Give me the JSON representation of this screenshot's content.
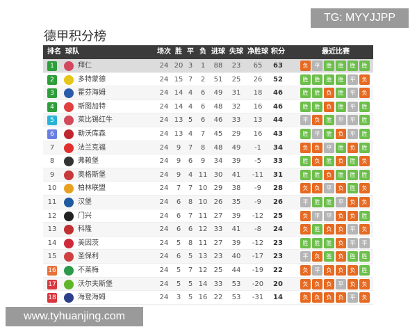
{
  "watermark_top": "TG: MYYJJPP",
  "watermark_bottom": "www.tyhuanjing.com",
  "title": "德甲积分榜",
  "headers": {
    "rank": "排名",
    "team": "球队",
    "played": "场次",
    "win": "胜",
    "draw": "平",
    "loss": "负",
    "gf": "进球",
    "ga": "失球",
    "gd": "净胜球",
    "pts": "积分",
    "recent": "最近比赛"
  },
  "colors": {
    "header_bg": "#3b3b3b",
    "win": "#6cbf4a",
    "draw": "#b5b5b5",
    "loss": "#e66a22",
    "cl": "#2e9e3a",
    "el": "#2bb3d6",
    "conf": "#6a7fe0",
    "playoff": "#e8703a",
    "releg": "#d9363e"
  },
  "rows": [
    {
      "rank": "1",
      "team": "拜仁",
      "played": "24",
      "w": "20",
      "d": "3",
      "l": "1",
      "gf": "88",
      "ga": "23",
      "gd": "65",
      "pts": "63",
      "recent": [
        "负",
        "平",
        "胜",
        "胜",
        "胜",
        "胜"
      ],
      "zone": "cl",
      "logo": "#d3485f"
    },
    {
      "rank": "2",
      "team": "多特蒙德",
      "played": "24",
      "w": "15",
      "d": "7",
      "l": "2",
      "gf": "51",
      "ga": "25",
      "gd": "26",
      "pts": "52",
      "recent": [
        "胜",
        "胜",
        "胜",
        "胜",
        "平",
        "负"
      ],
      "zone": "cl",
      "logo": "#e6c619"
    },
    {
      "rank": "3",
      "team": "霍芬海姆",
      "played": "24",
      "w": "14",
      "d": "4",
      "l": "6",
      "gf": "49",
      "ga": "31",
      "gd": "18",
      "pts": "46",
      "recent": [
        "胜",
        "胜",
        "负",
        "胜",
        "平",
        "负"
      ],
      "zone": "cl",
      "logo": "#2a5caa"
    },
    {
      "rank": "4",
      "team": "斯图加特",
      "played": "24",
      "w": "14",
      "d": "4",
      "l": "6",
      "gf": "48",
      "ga": "32",
      "gd": "16",
      "pts": "46",
      "recent": [
        "胜",
        "胜",
        "负",
        "胜",
        "平",
        "胜"
      ],
      "zone": "cl",
      "logo": "#e04040"
    },
    {
      "rank": "5",
      "team": "莱比锡红牛",
      "played": "24",
      "w": "13",
      "d": "5",
      "l": "6",
      "gf": "46",
      "ga": "33",
      "gd": "13",
      "pts": "44",
      "recent": [
        "平",
        "负",
        "胜",
        "平",
        "平",
        "胜"
      ],
      "zone": "el",
      "logo": "#d24a5a"
    },
    {
      "rank": "6",
      "team": "勒沃库森",
      "played": "24",
      "w": "13",
      "d": "4",
      "l": "7",
      "gf": "45",
      "ga": "29",
      "gd": "16",
      "pts": "43",
      "recent": [
        "胜",
        "平",
        "胜",
        "负",
        "平",
        "胜"
      ],
      "zone": "conf",
      "logo": "#c0282d"
    },
    {
      "rank": "7",
      "team": "法兰克福",
      "played": "24",
      "w": "9",
      "d": "7",
      "l": "8",
      "gf": "48",
      "ga": "49",
      "gd": "-1",
      "pts": "34",
      "recent": [
        "负",
        "负",
        "平",
        "胜",
        "负",
        "胜"
      ],
      "zone": "",
      "logo": "#e03030"
    },
    {
      "rank": "8",
      "team": "弗赖堡",
      "played": "24",
      "w": "9",
      "d": "6",
      "l": "9",
      "gf": "34",
      "ga": "39",
      "gd": "-5",
      "pts": "33",
      "recent": [
        "胜",
        "负",
        "胜",
        "负",
        "胜",
        "负"
      ],
      "zone": "",
      "logo": "#333333"
    },
    {
      "rank": "9",
      "team": "奥格斯堡",
      "played": "24",
      "w": "9",
      "d": "4",
      "l": "11",
      "gf": "30",
      "ga": "41",
      "gd": "-11",
      "pts": "31",
      "recent": [
        "胜",
        "胜",
        "负",
        "胜",
        "胜",
        "胜"
      ],
      "zone": "",
      "logo": "#c83a3a"
    },
    {
      "rank": "10",
      "team": "柏林联盟",
      "played": "24",
      "w": "7",
      "d": "7",
      "l": "10",
      "gf": "29",
      "ga": "38",
      "gd": "-9",
      "pts": "28",
      "recent": [
        "负",
        "负",
        "平",
        "负",
        "胜",
        "负"
      ],
      "zone": "",
      "logo": "#e8a020"
    },
    {
      "rank": "11",
      "team": "汉堡",
      "played": "24",
      "w": "6",
      "d": "8",
      "l": "10",
      "gf": "26",
      "ga": "35",
      "gd": "-9",
      "pts": "26",
      "recent": [
        "平",
        "胜",
        "胜",
        "平",
        "负",
        "负"
      ],
      "zone": "",
      "logo": "#1f5aa0"
    },
    {
      "rank": "12",
      "team": "门兴",
      "played": "24",
      "w": "6",
      "d": "7",
      "l": "11",
      "gf": "27",
      "ga": "39",
      "gd": "-12",
      "pts": "25",
      "recent": [
        "负",
        "平",
        "平",
        "负",
        "负",
        "胜"
      ],
      "zone": "",
      "logo": "#222222"
    },
    {
      "rank": "13",
      "team": "科隆",
      "played": "24",
      "w": "6",
      "d": "6",
      "l": "12",
      "gf": "33",
      "ga": "41",
      "gd": "-8",
      "pts": "24",
      "recent": [
        "负",
        "胜",
        "负",
        "负",
        "平",
        "负"
      ],
      "zone": "",
      "logo": "#c03030"
    },
    {
      "rank": "14",
      "team": "美因茨",
      "played": "24",
      "w": "5",
      "d": "8",
      "l": "11",
      "gf": "27",
      "ga": "39",
      "gd": "-12",
      "pts": "23",
      "recent": [
        "胜",
        "胜",
        "胜",
        "负",
        "平",
        "平"
      ],
      "zone": "",
      "logo": "#d02a3a"
    },
    {
      "rank": "15",
      "team": "圣保利",
      "played": "24",
      "w": "6",
      "d": "5",
      "l": "13",
      "gf": "23",
      "ga": "40",
      "gd": "-17",
      "pts": "23",
      "recent": [
        "平",
        "负",
        "胜",
        "负",
        "胜",
        "胜"
      ],
      "zone": "",
      "logo": "#d04040"
    },
    {
      "rank": "16",
      "team": "不莱梅",
      "played": "24",
      "w": "5",
      "d": "7",
      "l": "12",
      "gf": "25",
      "ga": "44",
      "gd": "-19",
      "pts": "22",
      "recent": [
        "负",
        "平",
        "负",
        "负",
        "负",
        "胜"
      ],
      "zone": "playoff",
      "logo": "#2c9a4a"
    },
    {
      "rank": "17",
      "team": "沃尔夫斯堡",
      "played": "24",
      "w": "5",
      "d": "5",
      "l": "14",
      "gf": "33",
      "ga": "53",
      "gd": "-20",
      "pts": "20",
      "recent": [
        "负",
        "负",
        "负",
        "平",
        "负",
        "负"
      ],
      "zone": "releg",
      "logo": "#5fb52a"
    },
    {
      "rank": "18",
      "team": "海登海姆",
      "played": "24",
      "w": "3",
      "d": "5",
      "l": "16",
      "gf": "22",
      "ga": "53",
      "gd": "-31",
      "pts": "14",
      "recent": [
        "负",
        "负",
        "负",
        "负",
        "平",
        "负"
      ],
      "zone": "releg",
      "logo": "#2a3f8a"
    }
  ]
}
